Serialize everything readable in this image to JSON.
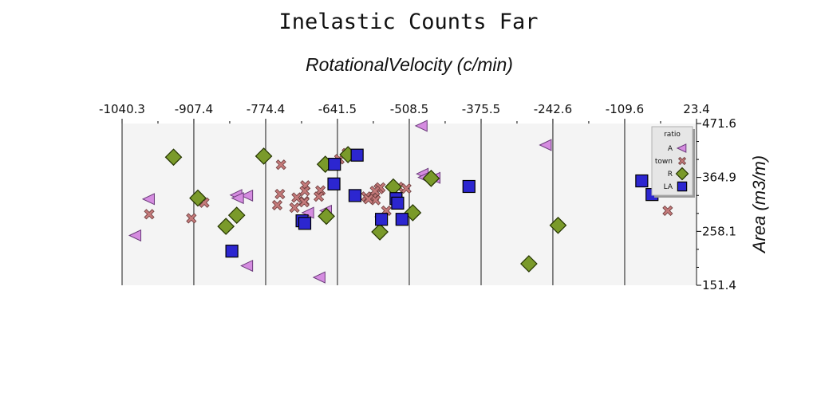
{
  "chart_data": {
    "type": "scatter",
    "title": "Inelastic Counts Far",
    "xlabel": "RotationalVelocity (c/min)",
    "ylabel": "Area (m3/m)",
    "xlim": [
      -1040.3,
      23.4
    ],
    "ylim": [
      151.4,
      471.6
    ],
    "x_ticks": [
      "-1040.3",
      "-907.4",
      "-774.4",
      "-641.5",
      "-508.5",
      "-375.5",
      "-242.6",
      "-109.6",
      "23.4"
    ],
    "y_ticks": [
      "151.4",
      "258.1",
      "364.9",
      "471.6"
    ],
    "x_axis_position": "top",
    "y_axis_position": "right",
    "legend": {
      "title": "ratio",
      "position": "top-right"
    },
    "series": [
      {
        "name": "A",
        "marker": "triangle-left",
        "color": "#d58ce0",
        "points": [
          [
            -990,
            322
          ],
          [
            -1015,
            250
          ],
          [
            -808,
            329
          ],
          [
            -828,
            330
          ],
          [
            -825,
            324
          ],
          [
            -808,
            190
          ],
          [
            -695,
            295
          ],
          [
            -674,
            167
          ],
          [
            -662,
            299
          ],
          [
            -560,
            287
          ],
          [
            -485,
            467
          ],
          [
            -483,
            372
          ],
          [
            -461,
            364
          ],
          [
            -480,
            365
          ],
          [
            -255,
            429
          ]
        ]
      },
      {
        "name": "town",
        "marker": "x",
        "color": "#c47a7a",
        "points": [
          [
            -990,
            292
          ],
          [
            -912,
            284
          ],
          [
            -888,
            315
          ],
          [
            -746,
            390
          ],
          [
            -748,
            332
          ],
          [
            -753,
            310
          ],
          [
            -717,
            325
          ],
          [
            -703,
            318
          ],
          [
            -701,
            349
          ],
          [
            -702,
            338
          ],
          [
            -721,
            305
          ],
          [
            -703,
            316
          ],
          [
            -673,
            339
          ],
          [
            -676,
            327
          ],
          [
            -638,
            401
          ],
          [
            -624,
            413
          ],
          [
            -551,
            299
          ],
          [
            -529,
            346
          ],
          [
            -514,
            343
          ],
          [
            -565,
            342
          ],
          [
            -574,
            326
          ],
          [
            -588,
            327
          ],
          [
            -571,
            320
          ],
          [
            -562,
            345
          ],
          [
            -572,
            338
          ],
          [
            -584,
            322
          ],
          [
            -30,
            299
          ]
        ]
      },
      {
        "name": "R",
        "marker": "diamond",
        "color": "#7a9a2a",
        "points": [
          [
            -945,
            405
          ],
          [
            -900,
            324
          ],
          [
            -848,
            268
          ],
          [
            -828,
            290
          ],
          [
            -778,
            407
          ],
          [
            -664,
            391
          ],
          [
            -662,
            288
          ],
          [
            -622,
            410
          ],
          [
            -538,
            346
          ],
          [
            -563,
            257
          ],
          [
            -502,
            295
          ],
          [
            -468,
            363
          ],
          [
            -287,
            194
          ],
          [
            -233,
            270
          ]
        ]
      },
      {
        "name": "LA",
        "marker": "square",
        "color": "#2c26d0",
        "points": [
          [
            -837,
            219
          ],
          [
            -707,
            279
          ],
          [
            -702,
            274
          ],
          [
            -647,
            391
          ],
          [
            -648,
            352
          ],
          [
            -605,
            409
          ],
          [
            -609,
            329
          ],
          [
            -560,
            282
          ],
          [
            -533,
            323
          ],
          [
            -530,
            314
          ],
          [
            -522,
            282
          ],
          [
            -398,
            347
          ],
          [
            -78,
            358
          ],
          [
            -59,
            331
          ]
        ]
      }
    ]
  }
}
